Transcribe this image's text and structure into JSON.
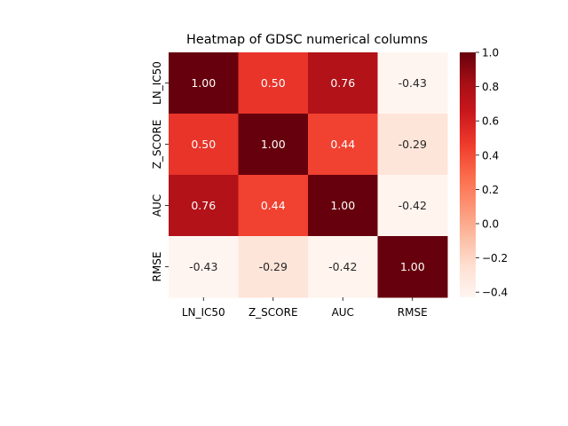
{
  "chart_data": {
    "type": "heatmap",
    "title": "Heatmap of GDSC numerical columns",
    "xlabel": "",
    "ylabel": "",
    "x_categories": [
      "LN_IC50",
      "Z_SCORE",
      "AUC",
      "RMSE"
    ],
    "y_categories": [
      "LN_IC50",
      "Z_SCORE",
      "AUC",
      "RMSE"
    ],
    "values": [
      [
        1.0,
        0.5,
        0.76,
        -0.43
      ],
      [
        0.5,
        1.0,
        0.44,
        -0.29
      ],
      [
        0.76,
        0.44,
        1.0,
        -0.42
      ],
      [
        -0.43,
        -0.29,
        -0.42,
        1.0
      ]
    ],
    "annotations": [
      [
        "1.00",
        "0.50",
        "0.76",
        "-0.43"
      ],
      [
        "0.50",
        "1.00",
        "0.44",
        "-0.29"
      ],
      [
        "0.76",
        "0.44",
        "1.00",
        "-0.42"
      ],
      [
        "-0.43",
        "-0.29",
        "-0.42",
        "1.00"
      ]
    ],
    "colormap": "Reds",
    "color_range": [
      -0.43,
      1.0
    ],
    "colorbar_ticks": [
      1.0,
      0.8,
      0.6,
      0.4,
      0.2,
      0.0,
      -0.2,
      -0.4
    ],
    "colorbar_tick_labels": [
      "1.0",
      "0.8",
      "0.6",
      "0.4",
      "0.2",
      "0.0",
      "−0.2",
      "−0.4"
    ],
    "grid": false,
    "legend": "colorbar-right"
  }
}
